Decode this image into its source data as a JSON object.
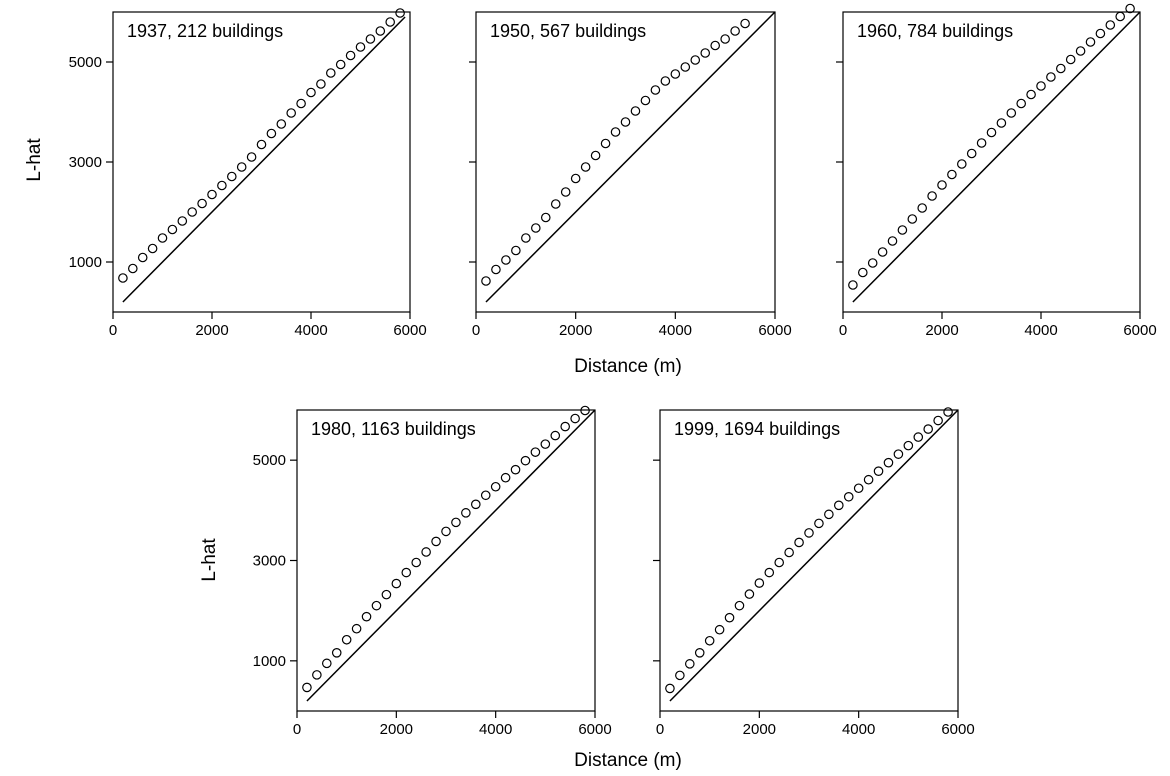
{
  "figure": {
    "xlabel_top": "Distance (m)",
    "xlabel_bottom": "Distance (m)",
    "ylabel_top": "L-hat",
    "ylabel_bottom": "L-hat"
  },
  "chart_data": [
    {
      "type": "scatter",
      "title": "1937, 212 buildings",
      "xlim": [
        0,
        6000
      ],
      "ylim": [
        0,
        6000
      ],
      "xticks": [
        0,
        2000,
        4000,
        6000
      ],
      "yticks": [
        1000,
        3000,
        5000
      ],
      "x": [
        200,
        400,
        600,
        800,
        1000,
        1200,
        1400,
        1600,
        1800,
        2000,
        2200,
        2400,
        2600,
        2800,
        3000,
        3200,
        3400,
        3600,
        3800,
        4000,
        4200,
        4400,
        4600,
        4800,
        5000,
        5200,
        5400,
        5600,
        5800
      ],
      "y": [
        680,
        870,
        1090,
        1270,
        1480,
        1650,
        1820,
        2000,
        2170,
        2350,
        2530,
        2710,
        2900,
        3100,
        3350,
        3570,
        3760,
        3980,
        4170,
        4390,
        4560,
        4780,
        4950,
        5130,
        5300,
        5460,
        5620,
        5800,
        5980
      ],
      "reference_line": [
        [
          200,
          200
        ],
        [
          5900,
          5900
        ]
      ],
      "grid": false
    },
    {
      "type": "scatter",
      "title": "1950, 567 buildings",
      "xlim": [
        0,
        6000
      ],
      "ylim": [
        0,
        6000
      ],
      "xticks": [
        0,
        2000,
        4000,
        6000
      ],
      "yticks": [
        1000,
        3000,
        5000
      ],
      "x": [
        200,
        400,
        600,
        800,
        1000,
        1200,
        1400,
        1600,
        1800,
        2000,
        2200,
        2400,
        2600,
        2800,
        3000,
        3200,
        3400,
        3600,
        3800,
        4000,
        4200,
        4400,
        4600,
        4800,
        5000,
        5200,
        5400
      ],
      "y": [
        620,
        850,
        1040,
        1230,
        1480,
        1680,
        1890,
        2160,
        2400,
        2670,
        2900,
        3130,
        3370,
        3600,
        3800,
        4020,
        4230,
        4440,
        4620,
        4760,
        4900,
        5040,
        5180,
        5330,
        5460,
        5620,
        5770
      ],
      "reference_line": [
        [
          200,
          200
        ],
        [
          6000,
          6000
        ]
      ],
      "grid": false
    },
    {
      "type": "scatter",
      "title": "1960, 784 buildings",
      "xlim": [
        0,
        6000
      ],
      "ylim": [
        0,
        6000
      ],
      "xticks": [
        0,
        2000,
        4000,
        6000
      ],
      "yticks": [
        1000,
        3000,
        5000
      ],
      "x": [
        200,
        400,
        600,
        800,
        1000,
        1200,
        1400,
        1600,
        1800,
        2000,
        2200,
        2400,
        2600,
        2800,
        3000,
        3200,
        3400,
        3600,
        3800,
        4000,
        4200,
        4400,
        4600,
        4800,
        5000,
        5200,
        5400,
        5600,
        5800
      ],
      "y": [
        540,
        790,
        980,
        1200,
        1420,
        1640,
        1860,
        2080,
        2320,
        2540,
        2750,
        2960,
        3170,
        3380,
        3590,
        3780,
        3980,
        4170,
        4350,
        4520,
        4700,
        4870,
        5050,
        5220,
        5400,
        5570,
        5740,
        5910,
        6070
      ],
      "reference_line": [
        [
          200,
          200
        ],
        [
          6000,
          6000
        ]
      ],
      "grid": false
    },
    {
      "type": "scatter",
      "title": "1980, 1163 buildings",
      "xlim": [
        0,
        6000
      ],
      "ylim": [
        0,
        6000
      ],
      "xticks": [
        0,
        2000,
        4000,
        6000
      ],
      "yticks": [
        1000,
        3000,
        5000
      ],
      "x": [
        200,
        400,
        600,
        800,
        1000,
        1200,
        1400,
        1600,
        1800,
        2000,
        2200,
        2400,
        2600,
        2800,
        3000,
        3200,
        3400,
        3600,
        3800,
        4000,
        4200,
        4400,
        4600,
        4800,
        5000,
        5200,
        5400,
        5600,
        5800
      ],
      "y": [
        470,
        720,
        950,
        1160,
        1420,
        1640,
        1880,
        2100,
        2320,
        2540,
        2760,
        2960,
        3170,
        3380,
        3580,
        3760,
        3950,
        4120,
        4300,
        4470,
        4650,
        4810,
        4990,
        5160,
        5320,
        5490,
        5670,
        5830,
        5990
      ],
      "reference_line": [
        [
          200,
          200
        ],
        [
          6000,
          6000
        ]
      ],
      "grid": false
    },
    {
      "type": "scatter",
      "title": "1999, 1694 buildings",
      "xlim": [
        0,
        6000
      ],
      "ylim": [
        0,
        6000
      ],
      "xticks": [
        0,
        2000,
        4000,
        6000
      ],
      "yticks": [
        1000,
        3000,
        5000
      ],
      "x": [
        200,
        400,
        600,
        800,
        1000,
        1200,
        1400,
        1600,
        1800,
        2000,
        2200,
        2400,
        2600,
        2800,
        3000,
        3200,
        3400,
        3600,
        3800,
        4000,
        4200,
        4400,
        4600,
        4800,
        5000,
        5200,
        5400,
        5600,
        5800
      ],
      "y": [
        450,
        710,
        940,
        1160,
        1400,
        1620,
        1860,
        2100,
        2330,
        2550,
        2760,
        2960,
        3160,
        3360,
        3550,
        3740,
        3920,
        4100,
        4270,
        4440,
        4610,
        4780,
        4950,
        5120,
        5290,
        5460,
        5620,
        5790,
        5960
      ],
      "reference_line": [
        [
          200,
          200
        ],
        [
          6000,
          6000
        ]
      ],
      "grid": false
    }
  ]
}
